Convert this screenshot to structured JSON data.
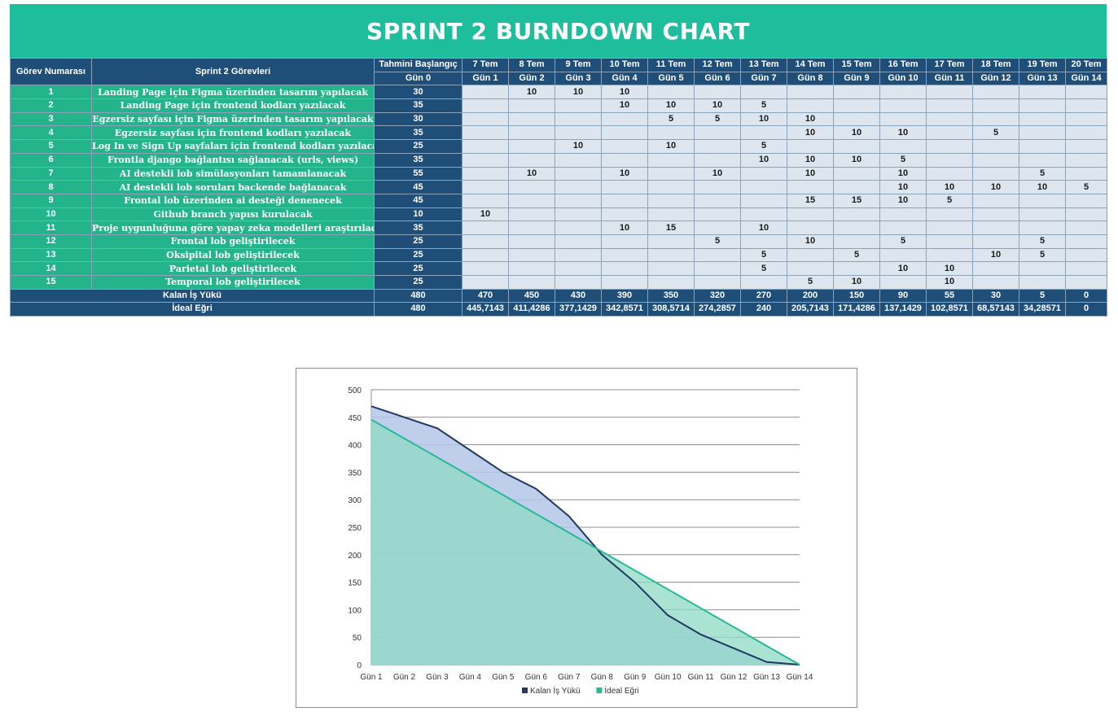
{
  "title": "SPRINT 2 BURNDOWN CHART",
  "headers": {
    "task_no": "Görev Numarası",
    "tasks": "Sprint 2 Görevleri",
    "estimate": "Tahmini Başlangıç",
    "estimate_day": "Gün 0",
    "dates": [
      "7 Tem",
      "8 Tem",
      "9 Tem",
      "10 Tem",
      "11 Tem",
      "12 Tem",
      "13 Tem",
      "14 Tem",
      "15 Tem",
      "16 Tem",
      "17 Tem",
      "18 Tem",
      "19 Tem",
      "20 Tem"
    ],
    "days": [
      "Gün 1",
      "Gün 2",
      "Gün 3",
      "Gün 4",
      "Gün 5",
      "Gün 6",
      "Gün 7",
      "Gün 8",
      "Gün 9",
      "Gün 10",
      "Gün 11",
      "Gün 12",
      "Gün 13",
      "Gün 14"
    ]
  },
  "rows": [
    {
      "no": "1",
      "task": "Landing Page için Figma üzerinden tasarım yapılacak",
      "est": "30",
      "cells": [
        "",
        "10",
        "10",
        "10",
        "",
        "",
        "",
        "",
        "",
        "",
        "",
        "",
        "",
        ""
      ]
    },
    {
      "no": "2",
      "task": "Landing Page için frontend kodları yazılacak",
      "est": "35",
      "cells": [
        "",
        "",
        "",
        "10",
        "10",
        "10",
        "5",
        "",
        "",
        "",
        "",
        "",
        "",
        ""
      ]
    },
    {
      "no": "3",
      "task": "Egzersiz sayfası için Figma üzerinden tasarım yapılacak",
      "est": "30",
      "cells": [
        "",
        "",
        "",
        "",
        "5",
        "5",
        "10",
        "10",
        "",
        "",
        "",
        "",
        "",
        ""
      ]
    },
    {
      "no": "4",
      "task": "Egzersiz sayfası için frontend kodları yazılacak",
      "est": "35",
      "cells": [
        "",
        "",
        "",
        "",
        "",
        "",
        "",
        "10",
        "10",
        "10",
        "",
        "5",
        "",
        ""
      ]
    },
    {
      "no": "5",
      "task": "Log In ve Sign Up sayfaları için frontend kodları yazılacak",
      "est": "25",
      "cells": [
        "",
        "",
        "10",
        "",
        "10",
        "",
        "5",
        "",
        "",
        "",
        "",
        "",
        "",
        ""
      ]
    },
    {
      "no": "6",
      "task": "Frontla django bağlantısı sağlanacak (urls, views)",
      "est": "35",
      "cells": [
        "",
        "",
        "",
        "",
        "",
        "",
        "10",
        "10",
        "10",
        "5",
        "",
        "",
        "",
        ""
      ]
    },
    {
      "no": "7",
      "task": "AI destekli lob simülasyonları tamamlanacak",
      "est": "55",
      "cells": [
        "",
        "10",
        "",
        "10",
        "",
        "10",
        "",
        "10",
        "",
        "10",
        "",
        "",
        "5",
        ""
      ]
    },
    {
      "no": "8",
      "task": "AI destekli lob soruları backende bağlanacak",
      "est": "45",
      "cells": [
        "",
        "",
        "",
        "",
        "",
        "",
        "",
        "",
        "",
        "10",
        "10",
        "10",
        "10",
        "5"
      ]
    },
    {
      "no": "9",
      "task": "Frontal lob üzerinden ai desteği denenecek",
      "est": "45",
      "cells": [
        "",
        "",
        "",
        "",
        "",
        "",
        "",
        "15",
        "15",
        "10",
        "5",
        "",
        "",
        ""
      ]
    },
    {
      "no": "10",
      "task": "Github branch yapısı kurulacak",
      "est": "10",
      "cells": [
        "10",
        "",
        "",
        "",
        "",
        "",
        "",
        "",
        "",
        "",
        "",
        "",
        "",
        ""
      ]
    },
    {
      "no": "11",
      "task": "Proje uygunluğuna göre yapay zeka modelleri araştırılacak",
      "est": "35",
      "cells": [
        "",
        "",
        "",
        "10",
        "15",
        "",
        "10",
        "",
        "",
        "",
        "",
        "",
        "",
        ""
      ]
    },
    {
      "no": "12",
      "task": "Frontal lob geliştirilecek",
      "est": "25",
      "cells": [
        "",
        "",
        "",
        "",
        "",
        "5",
        "",
        "10",
        "",
        "5",
        "",
        "",
        "5",
        ""
      ]
    },
    {
      "no": "13",
      "task": "Oksipital lob geliştirilecek",
      "est": "25",
      "cells": [
        "",
        "",
        "",
        "",
        "",
        "",
        "5",
        "",
        "5",
        "",
        "",
        "10",
        "5",
        ""
      ]
    },
    {
      "no": "14",
      "task": "Parietal lob geliştirilecek",
      "est": "25",
      "cells": [
        "",
        "",
        "",
        "",
        "",
        "",
        "5",
        "",
        "",
        "10",
        "10",
        "",
        "",
        ""
      ]
    },
    {
      "no": "15",
      "task": "Temporal lob geliştirilecek",
      "est": "25",
      "cells": [
        "",
        "",
        "",
        "",
        "",
        "",
        "",
        "5",
        "10",
        "",
        "10",
        "",
        "",
        ""
      ]
    }
  ],
  "summary": {
    "remaining_label": "Kalan İş Yükü",
    "remaining_start": "480",
    "remaining": [
      "470",
      "450",
      "430",
      "390",
      "350",
      "320",
      "270",
      "200",
      "150",
      "90",
      "55",
      "30",
      "5",
      "0"
    ],
    "ideal_label": "İdeal Eğri",
    "ideal_start": "480",
    "ideal": [
      "445,7143",
      "411,4286",
      "377,1429",
      "342,8571",
      "308,5714",
      "274,2857",
      "240",
      "205,7143",
      "171,4286",
      "137,1429",
      "102,8571",
      "68,57143",
      "34,28571",
      "0"
    ]
  },
  "chart_data": {
    "type": "area",
    "title": "",
    "xlabel": "",
    "ylabel": "",
    "categories": [
      "Gün 1",
      "Gün 2",
      "Gün 3",
      "Gün 4",
      "Gün 5",
      "Gün 6",
      "Gün 7",
      "Gün 8",
      "Gün 9",
      "Gün 10",
      "Gün 11",
      "Gün 12",
      "Gün 13",
      "Gün 14"
    ],
    "ylim": [
      0,
      500
    ],
    "yticks": [
      0,
      50,
      100,
      150,
      200,
      250,
      300,
      350,
      400,
      450,
      500
    ],
    "grid": true,
    "legend_position": "bottom",
    "series": [
      {
        "name": "Kalan İş Yükü",
        "values": [
          470,
          450,
          430,
          390,
          350,
          320,
          270,
          200,
          150,
          90,
          55,
          30,
          5,
          0
        ],
        "line_color": "#1f3864",
        "fill_color": "#b4c7e7"
      },
      {
        "name": "İdeal Eğri",
        "values": [
          445.7143,
          411.4286,
          377.1429,
          342.8571,
          308.5714,
          274.2857,
          240,
          205.7143,
          171.4286,
          137.1429,
          102.8571,
          68.57143,
          34.28571,
          0
        ],
        "line_color": "#26b99a",
        "fill_color": "#8fd9c4"
      }
    ]
  }
}
